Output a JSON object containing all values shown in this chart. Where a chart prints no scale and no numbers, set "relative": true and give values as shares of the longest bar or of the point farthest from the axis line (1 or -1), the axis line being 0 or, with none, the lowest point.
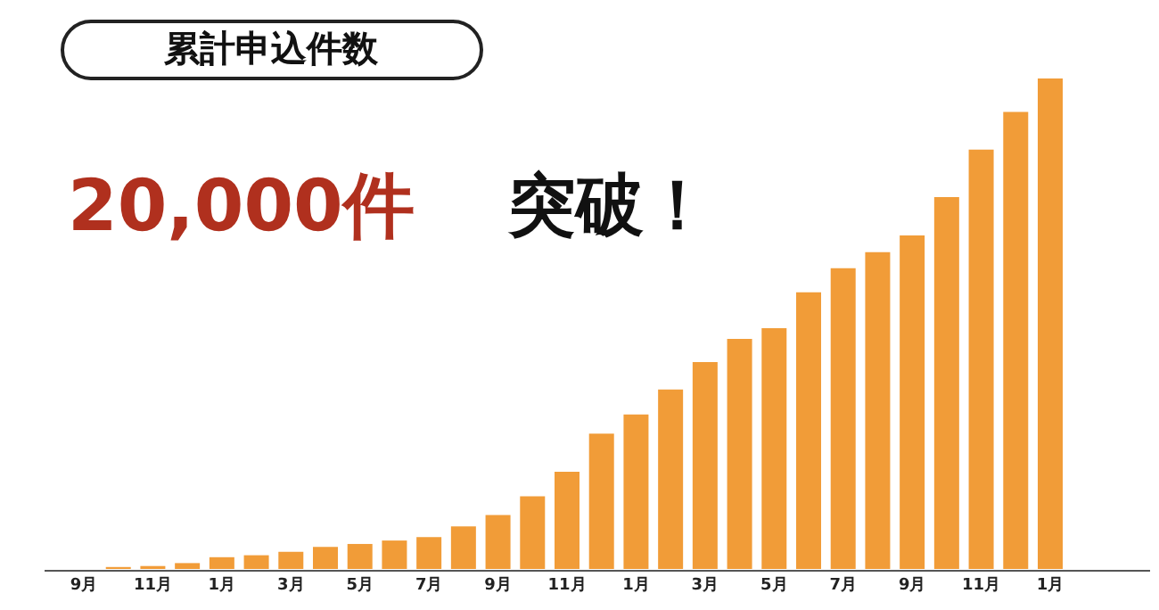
{
  "chart_data": {
    "type": "bar",
    "title": "累計申込件数",
    "annotations": [
      "20,000件",
      "突破！"
    ],
    "categories": [
      "9月",
      null,
      "11月",
      null,
      "1月",
      null,
      "3月",
      null,
      "5月",
      null,
      "7月",
      null,
      "9月",
      null,
      "11月",
      null,
      "1月",
      null,
      "3月",
      null,
      "5月",
      null,
      "7月",
      null,
      "9月",
      null,
      "11月",
      null,
      "1月"
    ],
    "values": [
      null,
      0.004,
      0.006,
      0.012,
      0.024,
      0.028,
      0.035,
      0.045,
      0.051,
      0.058,
      0.065,
      0.087,
      0.11,
      0.148,
      0.198,
      0.276,
      0.315,
      0.366,
      0.422,
      0.469,
      0.491,
      0.564,
      0.613,
      0.646,
      0.68,
      0.758,
      0.855,
      0.932,
      1
    ],
    "color": "#f19c38",
    "relative": true,
    "grid": false
  }
}
